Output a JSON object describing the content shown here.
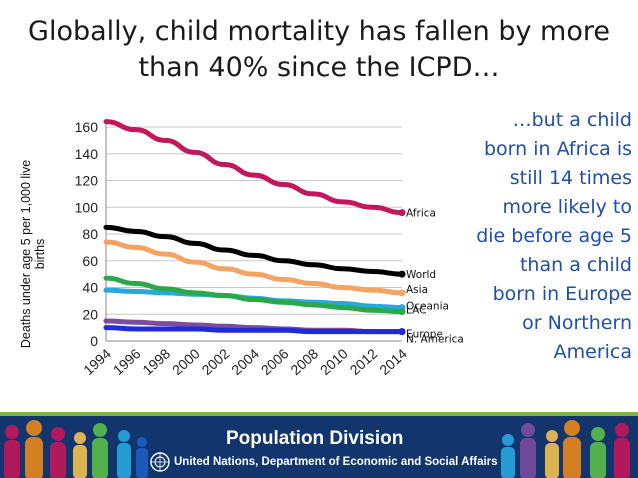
{
  "slide": {
    "title": "Globally, child mortality has fallen by more than 40% since the ICPD…",
    "callout": "…but a child born in Africa is still 14 times more likely to die before age 5 than a child born in Europe or Northern America"
  },
  "footer": {
    "title": "Population Division",
    "subtitle": "United Nations, Department of Economic and Social Affairs",
    "logo_icon": "un-emblem-icon"
  },
  "chart_data": {
    "type": "line",
    "title": "",
    "xlabel": "",
    "ylabel": "Deaths under age 5 per 1,000 live births",
    "x": [
      1994,
      1996,
      1998,
      2000,
      2002,
      2004,
      2006,
      2008,
      2010,
      2012,
      2014
    ],
    "xticks": [
      "1994",
      "1996",
      "1998",
      "2000",
      "2002",
      "2004",
      "2006",
      "2008",
      "2010",
      "2012",
      "2014"
    ],
    "ylim": [
      0,
      170
    ],
    "yticks": [
      "0",
      "20",
      "40",
      "60",
      "80",
      "100",
      "120",
      "140",
      "160"
    ],
    "grid": true,
    "series": [
      {
        "name": "Africa",
        "color": "#c2185b",
        "values": [
          164,
          158,
          150,
          141,
          132,
          124,
          117,
          110,
          104,
          100,
          96
        ]
      },
      {
        "name": "World",
        "color": "#000000",
        "values": [
          85,
          82,
          78,
          73,
          68,
          64,
          60,
          57,
          54,
          52,
          50
        ]
      },
      {
        "name": "Asia",
        "color": "#f4a460",
        "values": [
          74,
          70,
          65,
          59,
          54,
          50,
          46,
          43,
          40,
          38,
          36
        ]
      },
      {
        "name": "Oceania",
        "color": "#29a8e0",
        "values": [
          38,
          37,
          36,
          35,
          34,
          32,
          30,
          29,
          28,
          26,
          25
        ]
      },
      {
        "name": "LAC",
        "color": "#2ca84a",
        "values": [
          47,
          43,
          39,
          36,
          34,
          31,
          29,
          27,
          25,
          23,
          22
        ]
      },
      {
        "name": "Europe",
        "color": "#7b4ca0",
        "values": [
          15,
          14,
          13,
          12,
          11,
          10,
          9,
          8,
          8,
          7,
          7
        ]
      },
      {
        "name": "N. America",
        "color": "#1f2bd6",
        "values": [
          10,
          9,
          9,
          9,
          8,
          8,
          8,
          7,
          7,
          7,
          7
        ]
      }
    ]
  }
}
